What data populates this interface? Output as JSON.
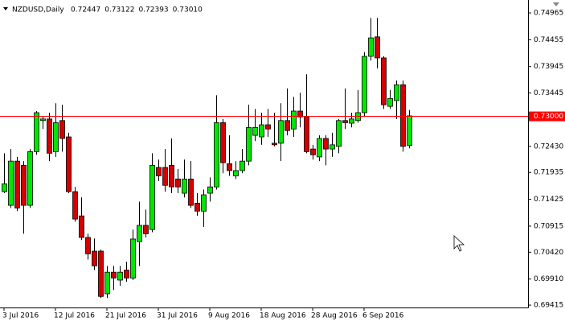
{
  "chart_data": {
    "type": "candlestick",
    "title": "NZDUSD,Daily",
    "legend_values": [
      0.72447,
      0.73122,
      0.72393,
      0.7301
    ],
    "legend_value_labels": [
      "0.72447",
      "0.73122",
      "0.72393",
      "0.73010"
    ],
    "categories": [
      "3 Jul 2016",
      null,
      null,
      null,
      null,
      null,
      null,
      null,
      "12 Jul 2016",
      null,
      null,
      null,
      null,
      null,
      null,
      null,
      "21 Jul 2016",
      null,
      null,
      null,
      null,
      null,
      null,
      null,
      "31 Jul 2016",
      null,
      null,
      null,
      null,
      null,
      null,
      null,
      "9 Aug 2016",
      null,
      null,
      null,
      null,
      null,
      null,
      null,
      "18 Aug 2016",
      null,
      null,
      null,
      null,
      null,
      null,
      null,
      "28 Aug 2016",
      null,
      null,
      null,
      null,
      null,
      null,
      null,
      "6 Sep 2016",
      null,
      null,
      null,
      null,
      null,
      null,
      null
    ],
    "open": [
      0.7157,
      0.7131,
      0.7215,
      0.7207,
      0.7131,
      0.7233,
      0.7292,
      0.7295,
      0.7233,
      0.7292,
      0.7261,
      0.7157,
      0.7111,
      0.707,
      0.7044,
      0.7044,
      0.6963,
      0.7004,
      0.6989,
      0.7008,
      0.6993,
      0.7062,
      0.7093,
      0.7085,
      0.7203,
      0.7203,
      0.7207,
      0.7181,
      0.7154,
      0.7181,
      0.7135,
      0.712,
      0.7154,
      0.7166,
      0.7288,
      0.721,
      0.7187,
      0.7197,
      0.7215,
      0.7264,
      0.7261,
      0.7284,
      0.7249,
      0.7249,
      0.7292,
      0.7276,
      0.731,
      0.7299,
      0.7238,
      0.7223,
      0.7258,
      0.7238,
      0.7243,
      0.7292,
      0.7287,
      0.7292,
      0.7307,
      0.7414,
      0.7451,
      0.7411,
      0.7319,
      0.733,
      0.736,
      0.72447
    ],
    "high": [
      0.723,
      0.7238,
      0.7223,
      0.7215,
      0.7238,
      0.731,
      0.7299,
      0.7307,
      0.7325,
      0.7322,
      0.7269,
      0.7166,
      0.7146,
      0.7077,
      0.7068,
      0.7047,
      0.7016,
      0.7016,
      0.7016,
      0.7024,
      0.7085,
      0.7138,
      0.7123,
      0.723,
      0.7218,
      0.7238,
      0.7258,
      0.72,
      0.7218,
      0.7215,
      0.7154,
      0.7161,
      0.7184,
      0.734,
      0.7295,
      0.7264,
      0.7215,
      0.7238,
      0.7322,
      0.7314,
      0.7307,
      0.7314,
      0.7307,
      0.7325,
      0.7353,
      0.7337,
      0.7345,
      0.738,
      0.7246,
      0.7264,
      0.7264,
      0.7269,
      0.7295,
      0.7353,
      0.7307,
      0.735,
      0.7422,
      0.7487,
      0.7487,
      0.7414,
      0.735,
      0.7368,
      0.7368,
      0.73122
    ],
    "low": [
      0.7154,
      0.7126,
      0.712,
      0.7077,
      0.7126,
      0.7227,
      0.7276,
      0.7215,
      0.7223,
      0.7233,
      0.7154,
      0.71,
      0.7065,
      0.7028,
      0.7008,
      0.6955,
      0.6955,
      0.697,
      0.6978,
      0.6986,
      0.6989,
      0.7016,
      0.707,
      0.708,
      0.7177,
      0.7157,
      0.7154,
      0.7154,
      0.7146,
      0.7126,
      0.7111,
      0.709,
      0.7138,
      0.7161,
      0.7192,
      0.7187,
      0.7181,
      0.7192,
      0.7207,
      0.7253,
      0.7246,
      0.7261,
      0.7243,
      0.7215,
      0.7264,
      0.7261,
      0.7279,
      0.723,
      0.7218,
      0.7215,
      0.7207,
      0.7223,
      0.723,
      0.7276,
      0.7279,
      0.7288,
      0.7299,
      0.7406,
      0.7391,
      0.7314,
      0.7314,
      0.7295,
      0.7233,
      0.72393
    ],
    "close": [
      0.7172,
      0.7215,
      0.7126,
      0.7131,
      0.7233,
      0.7307,
      0.7295,
      0.723,
      0.7288,
      0.7258,
      0.7157,
      0.7105,
      0.707,
      0.7039,
      0.7016,
      0.6958,
      0.7004,
      0.6993,
      0.7004,
      0.6993,
      0.7067,
      0.7093,
      0.7077,
      0.7207,
      0.7187,
      0.7169,
      0.7166,
      0.7166,
      0.7181,
      0.7131,
      0.712,
      0.7151,
      0.7166,
      0.7288,
      0.7212,
      0.7197,
      0.7197,
      0.7215,
      0.7279,
      0.7279,
      0.7284,
      0.7276,
      0.7246,
      0.7292,
      0.7273,
      0.731,
      0.7299,
      0.7233,
      0.7227,
      0.7258,
      0.7238,
      0.7246,
      0.7292,
      0.7288,
      0.7295,
      0.7307,
      0.7414,
      0.7449,
      0.7411,
      0.7322,
      0.7334,
      0.736,
      0.7243,
      0.7301
    ],
    "up_color": "#00e600",
    "down_color": "#d40000",
    "price_line": {
      "value": 0.73,
      "label": "0.73000",
      "color": "#ff0000"
    },
    "ylim": [
      0.6937,
      0.7521
    ],
    "yticks": [
      0.74965,
      0.74455,
      0.73945,
      0.73445,
      {
        "value": 0.7243,
        "label": "0.72430"
      },
      0.71935,
      0.71425,
      0.70915,
      {
        "value": 0.7042,
        "label": "0.70420"
      },
      {
        "value": 0.6991,
        "label": "0.69910"
      },
      0.69415
    ]
  }
}
